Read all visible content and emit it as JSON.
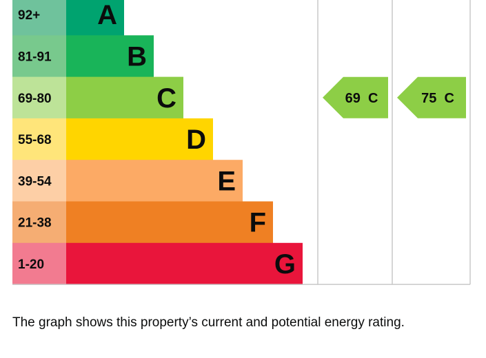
{
  "chart_data": {
    "type": "bar",
    "bands": [
      {
        "range": "92+",
        "letter": "A",
        "color": "#00a36f",
        "range_color": "#6fc29c",
        "text_color": "#0b0c0c"
      },
      {
        "range": "81-91",
        "letter": "B",
        "color": "#19b459",
        "range_color": "#78c98d",
        "text_color": "#0b0c0c"
      },
      {
        "range": "69-80",
        "letter": "C",
        "color": "#8dce46",
        "range_color": "#bde398",
        "text_color": "#0b0c0c"
      },
      {
        "range": "55-68",
        "letter": "D",
        "color": "#ffd500",
        "range_color": "#ffe57a",
        "text_color": "#0b0c0c"
      },
      {
        "range": "39-54",
        "letter": "E",
        "color": "#fcaa65",
        "range_color": "#fdcfa6",
        "text_color": "#0b0c0c"
      },
      {
        "range": "21-38",
        "letter": "F",
        "color": "#ef8023",
        "range_color": "#f5ad73",
        "text_color": "#0b0c0c"
      },
      {
        "range": "1-20",
        "letter": "G",
        "color": "#e9153b",
        "range_color": "#f27b90",
        "text_color": "#0b0c0c"
      }
    ],
    "current": {
      "value": 69,
      "band": "C",
      "label": "69  C",
      "color": "#8dce46"
    },
    "potential": {
      "value": 75,
      "band": "C",
      "label": "75  C",
      "color": "#8dce46"
    }
  },
  "caption": "The graph shows this property’s current and potential energy rating."
}
